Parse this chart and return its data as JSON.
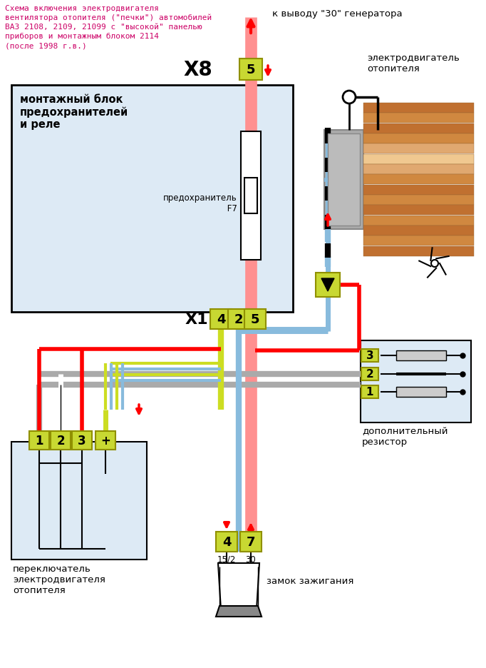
{
  "title": "Схема включения электродвигателя\nвентилятора отопителя (\"печки\") автомобилей\nВАЗ 2108, 2109, 21099 с \"высокой\" панелью\nприборов и монтажным блоком 2114\n(после 1998 г.в.)",
  "top_label": "к выводу \"30\" генератора",
  "motor_label": "электродвигатель\nотопителя",
  "fuse_label": "предохранитель\n     F7",
  "fuse_box_label": "монтажный блок\nпредохранителей\nи реле",
  "switch_label": "переключатель\nэлектродвигателя\nотопителя",
  "resistor_label": "дополнительный\nрезистор",
  "ignition_label": "замок зажигания",
  "green": "#c8d832",
  "green_dark": "#909000",
  "fuse_bg": "#ddeaf5",
  "switch_bg": "#ddeaf5",
  "resistor_bg": "#ddeaf5",
  "red_thick": "#ff9090",
  "red": "#ff0000",
  "blue": "#88bbdd",
  "ygreen": "#ccdd22",
  "gray": "#aaaaaa",
  "black": "#000000",
  "white": "#ffffff",
  "motor1": "#c07030",
  "motor2": "#d08840",
  "motor3": "#e0a870",
  "motor4": "#f0c890",
  "casing": "#aaaaaa",
  "casing_dark": "#888888"
}
